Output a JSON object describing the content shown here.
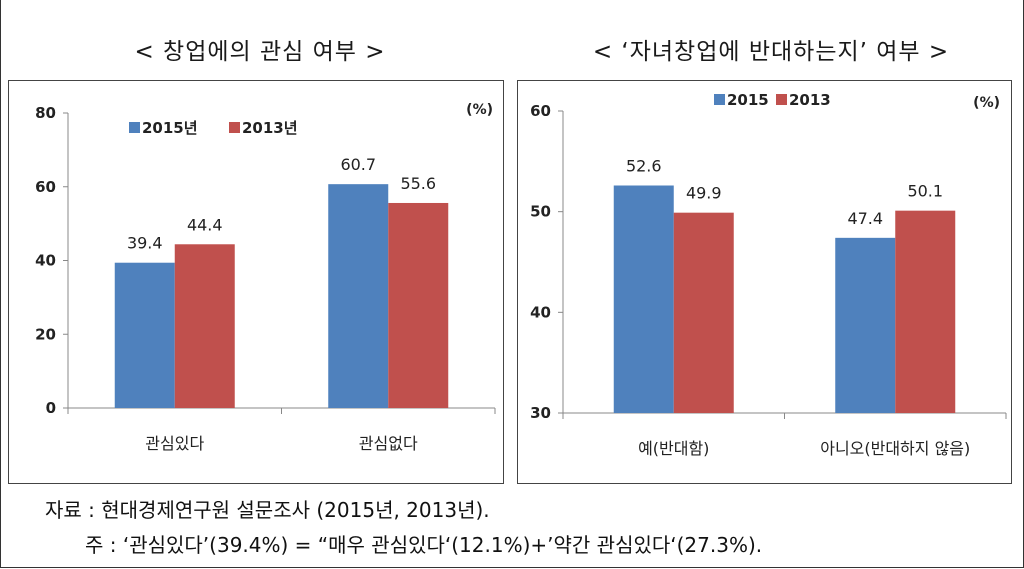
{
  "titles": {
    "left": "< 창업에의 관심 여부 >",
    "right": "< ‘자녀창업에 반대하는지’ 여부 >"
  },
  "footnotes": {
    "source": "자료 : 현대경제연구원 설문조사 (2015년, 2013년).",
    "note": "주 : ‘관심있다’(39.4%) = “매우 관심있다‘(12.1%)+’약간 관심있다‘(27.3%)."
  },
  "colors": {
    "series_2015": "#4f81bd",
    "series_2013": "#c0504d"
  },
  "chart_data": [
    {
      "type": "bar",
      "title": "< 창업에의 관심 여부 >",
      "categories": [
        "관심있다",
        "관심없다"
      ],
      "series": [
        {
          "name": "2015년",
          "values": [
            39.4,
            60.7
          ]
        },
        {
          "name": "2013년",
          "values": [
            44.4,
            55.6
          ]
        }
      ],
      "ylim": [
        0,
        80
      ],
      "yticks": [
        "0",
        "20",
        "40",
        "60",
        "80"
      ],
      "unit": "(%)",
      "legend": "top-left",
      "grid": false
    },
    {
      "type": "bar",
      "title": "< ‘자녀창업에 반대하는지’ 여부 >",
      "categories": [
        "예(반대함)",
        "아니오(반대하지 않음)"
      ],
      "series": [
        {
          "name": "2015",
          "values": [
            52.6,
            47.4
          ]
        },
        {
          "name": "2013",
          "values": [
            49.9,
            50.1
          ]
        }
      ],
      "ylim": [
        30,
        60
      ],
      "yticks": [
        "30",
        "40",
        "50",
        "60"
      ],
      "unit": "(%)",
      "legend": "top",
      "grid": false
    }
  ]
}
